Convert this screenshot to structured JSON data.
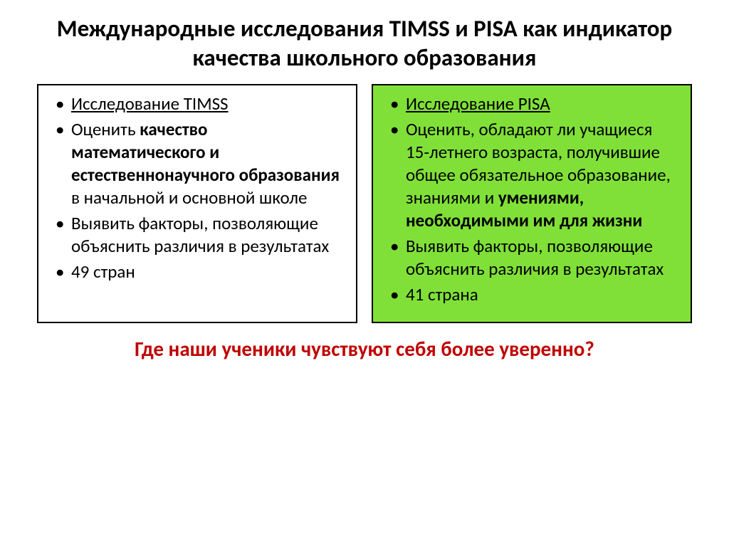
{
  "title": "Международные исследования TIMSS и PISA как индикатор качества школьного образования",
  "left_box": {
    "background_color": "#ffffff",
    "items": [
      {
        "html": "<span class='underline'>Исследование TIMSS</span>"
      },
      {
        "html": "Оценить <span class='bold'>качество математического и естественнонаучного образования</span> в начальной и основной школе"
      },
      {
        "html": "Выявить факторы, позволяющие объяснить различия в результатах"
      },
      {
        "html": "49 стран"
      }
    ]
  },
  "right_box": {
    "background_color": "#80e038",
    "items": [
      {
        "html": "<span class='underline'>Исследование PISA</span>"
      },
      {
        "html": "Оценить, обладают ли учащиеся 15-летнего возраста, получившие общее обязательное образование, знаниями и <span class='bold'>умениями, необходимыми им для жизни</span>"
      },
      {
        "html": "Выявить факторы, позволяющие объяснить различия в результатах"
      },
      {
        "html": "41 страна"
      }
    ]
  },
  "footer": "Где наши ученики чувствуют себя более уверенно?",
  "styles": {
    "title_fontsize": 33,
    "body_fontsize": 25,
    "footer_fontsize": 29,
    "footer_color": "#c00000",
    "border_color": "#000000"
  }
}
